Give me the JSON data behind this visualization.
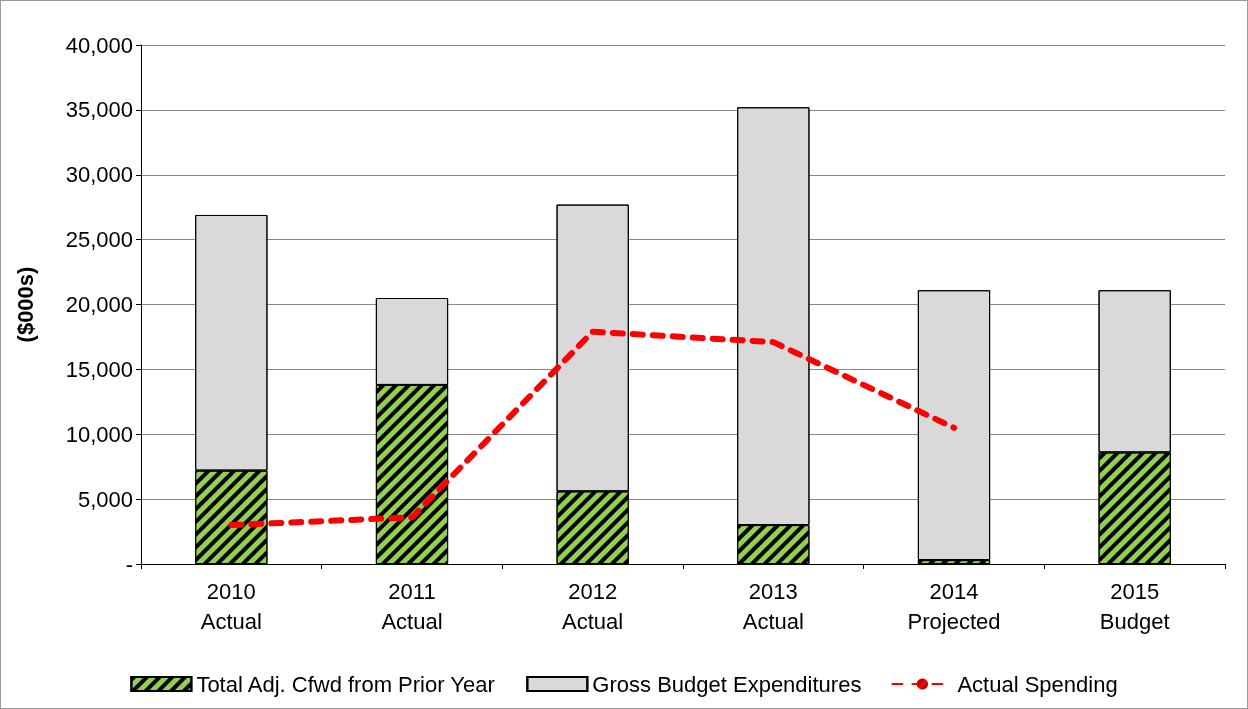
{
  "chart_data": {
    "type": "bar",
    "stacked": true,
    "ylabel": "($000s)",
    "categories": [
      "2010\nActual",
      "2011\nActual",
      "2012\nActual",
      "2013\nActual",
      "2014\nProjected",
      "2015\nBudget"
    ],
    "series": [
      {
        "name": "Total Adj. Cfwd from Prior Year",
        "color": "#92d050",
        "values": [
          7200,
          13800,
          5600,
          3000,
          300,
          8600
        ]
      },
      {
        "name": "Gross Budget Expenditures",
        "color": "#d9d9d9",
        "values": [
          19700,
          6700,
          22100,
          32200,
          20800,
          12500
        ]
      },
      {
        "name": "Actual Spending",
        "type": "line",
        "color": "#ff0000",
        "line_style": "dashed",
        "marker": "none",
        "values": [
          3000,
          3600,
          17900,
          17100,
          10500,
          null
        ]
      }
    ],
    "ylim": [
      0,
      40000
    ],
    "yticks": [
      {
        "value": 0,
        "label": "-"
      },
      {
        "value": 5000,
        "label": "5,000"
      },
      {
        "value": 10000,
        "label": "10,000"
      },
      {
        "value": 15000,
        "label": "15,000"
      },
      {
        "value": 20000,
        "label": "20,000"
      },
      {
        "value": 25000,
        "label": "25,000"
      },
      {
        "value": 30000,
        "label": "30,000"
      },
      {
        "value": 35000,
        "label": "35,000"
      },
      {
        "value": 40000,
        "label": "40,000"
      }
    ],
    "grid": "y",
    "legend": "bottom"
  }
}
